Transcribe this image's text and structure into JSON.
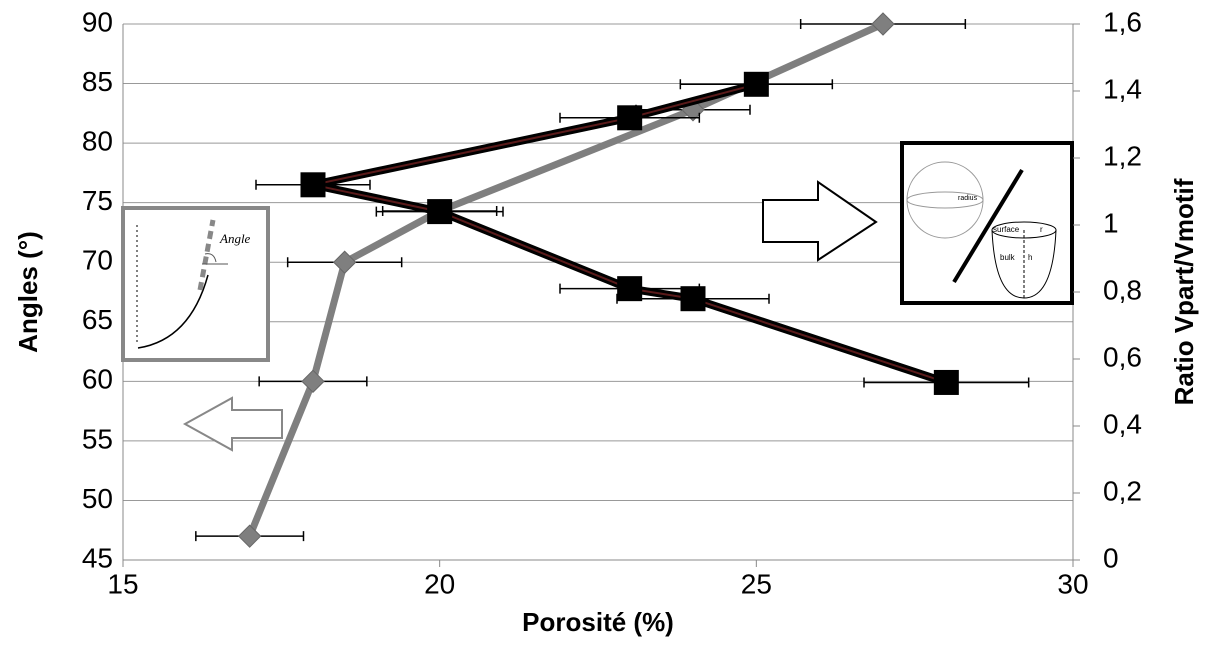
{
  "chart_data": {
    "type": "line",
    "xlabel": "Porosité (%)",
    "ylabel": "Angles (°)",
    "y2label": "Ratio Vpart/Vmotif",
    "xlim": [
      15,
      30
    ],
    "xticks": [
      15,
      20,
      25,
      30
    ],
    "ylim": [
      45,
      90
    ],
    "yticks": [
      45,
      50,
      55,
      60,
      65,
      70,
      75,
      80,
      85,
      90
    ],
    "y2lim": [
      0,
      1.6
    ],
    "y2ticks": [
      0,
      {
        "value": 0.2,
        "label": "0,2"
      },
      {
        "value": 0.4,
        "label": "0,4"
      },
      {
        "value": 0.6,
        "label": "0,6"
      },
      {
        "value": 0.8,
        "label": "0,8"
      },
      1,
      {
        "value": 1.2,
        "label": "1,2"
      },
      {
        "value": 1.4,
        "label": "1,4"
      },
      {
        "value": 1.6,
        "label": "1,6"
      }
    ],
    "grid": true,
    "series": [
      {
        "color": "#7f7f7f",
        "marker": "diamond",
        "x": [
          17,
          18,
          18.5,
          20,
          24,
          27
        ],
        "values": [
          47,
          60,
          70,
          74.3,
          82.8,
          90
        ],
        "xerr": [
          0.85,
          0.85,
          0.9,
          0.9,
          0.9,
          1.3
        ]
      },
      {
        "color": "#000000",
        "marker": "square",
        "axis": "y2",
        "x": [
          25,
          23,
          18,
          20,
          23,
          24,
          28
        ],
        "values": [
          1.42,
          1.32,
          1.12,
          1.04,
          0.81,
          0.78,
          0.53
        ],
        "xerr": [
          1.2,
          1.1,
          0.9,
          1.0,
          1.1,
          1.2,
          1.3
        ]
      }
    ],
    "insets": {
      "angle": "Angle",
      "radius": "radius",
      "surface": "surface",
      "r": "r",
      "bulk": "bulk",
      "h": "h"
    }
  }
}
